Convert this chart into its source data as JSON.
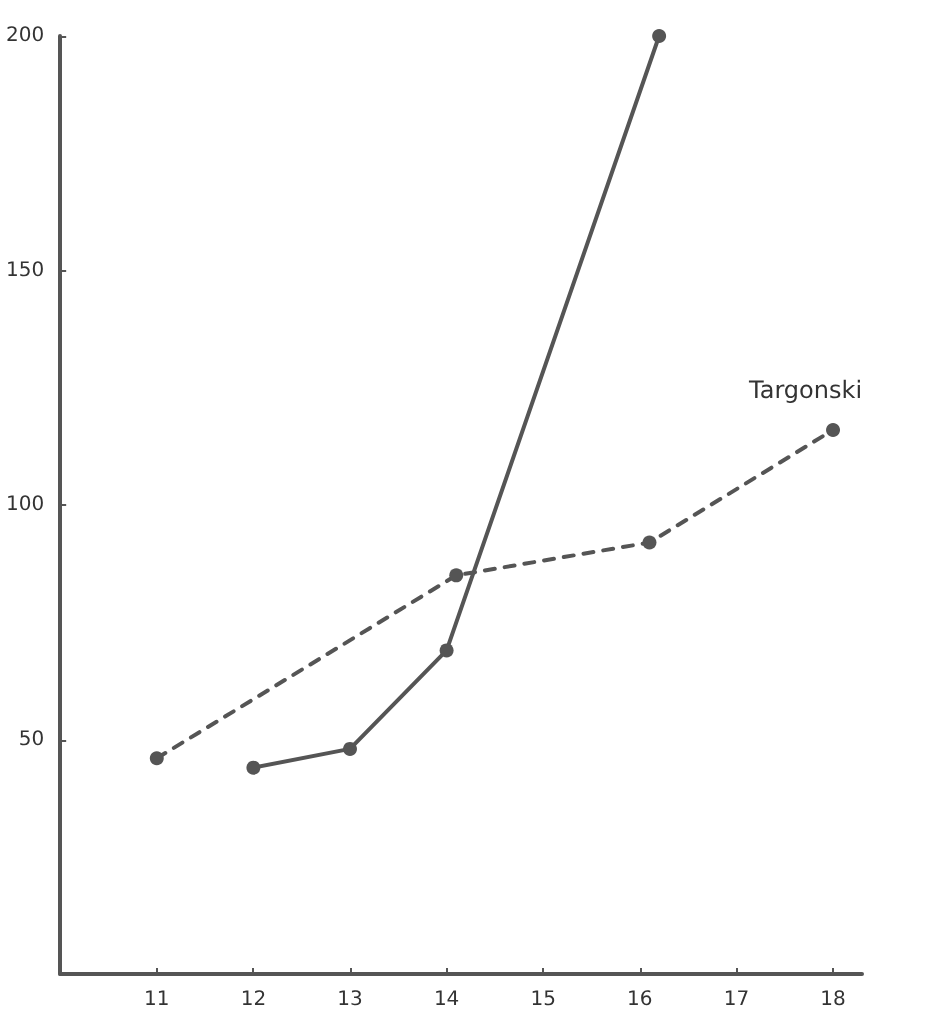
{
  "chart_data": {
    "type": "line",
    "xlim": [
      10,
      18.3
    ],
    "xticks": [
      11,
      12,
      13,
      14,
      15,
      16,
      17,
      18
    ],
    "ylim": [
      0,
      200
    ],
    "yticks": [
      50,
      100,
      150,
      200
    ],
    "marker": "circle",
    "grid": false,
    "legend": false,
    "series": [
      {
        "x": [
          12,
          13,
          14,
          16.2
        ],
        "values": [
          44,
          48,
          69,
          200
        ],
        "color": "#555555",
        "line_style": "solid"
      },
      {
        "name": "Targonski",
        "x": [
          11,
          14.1,
          16.1,
          18
        ],
        "values": [
          46,
          85,
          92,
          116
        ],
        "color": "#555555",
        "line_style": "dashed"
      }
    ]
  }
}
